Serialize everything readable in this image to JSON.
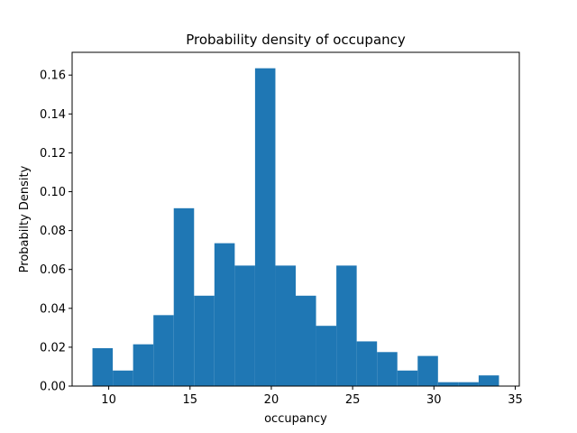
{
  "chart_data": {
    "type": "bar",
    "title": "Probability density of occupancy",
    "xlabel": "occupancy",
    "ylabel": "Probabilty Density",
    "bar_color": "#1f77b4",
    "bin_edges": [
      9.0,
      10.25,
      11.5,
      12.75,
      14.0,
      15.25,
      16.5,
      17.75,
      19.0,
      20.25,
      21.5,
      22.75,
      24.0,
      25.25,
      26.5,
      27.75,
      29.0,
      30.25,
      31.5,
      32.75,
      34.0
    ],
    "values": [
      0.0195,
      0.008,
      0.0215,
      0.0365,
      0.0915,
      0.0465,
      0.0735,
      0.062,
      0.1635,
      0.062,
      0.0465,
      0.031,
      0.062,
      0.023,
      0.0175,
      0.008,
      0.0155,
      0.002,
      0.002,
      0.0055
    ],
    "xlim": [
      7.75,
      35.25
    ],
    "ylim": [
      0,
      0.1717
    ],
    "xticks": [
      10,
      15,
      20,
      25,
      30,
      35
    ],
    "xtick_labels": [
      "10",
      "15",
      "20",
      "25",
      "30",
      "35"
    ],
    "yticks": [
      0.0,
      0.02,
      0.04,
      0.06,
      0.08,
      0.1,
      0.12,
      0.14,
      0.16
    ],
    "ytick_labels": [
      "0.00",
      "0.02",
      "0.04",
      "0.06",
      "0.08",
      "0.10",
      "0.12",
      "0.14",
      "0.16"
    ],
    "grid": false,
    "legend": "none"
  }
}
